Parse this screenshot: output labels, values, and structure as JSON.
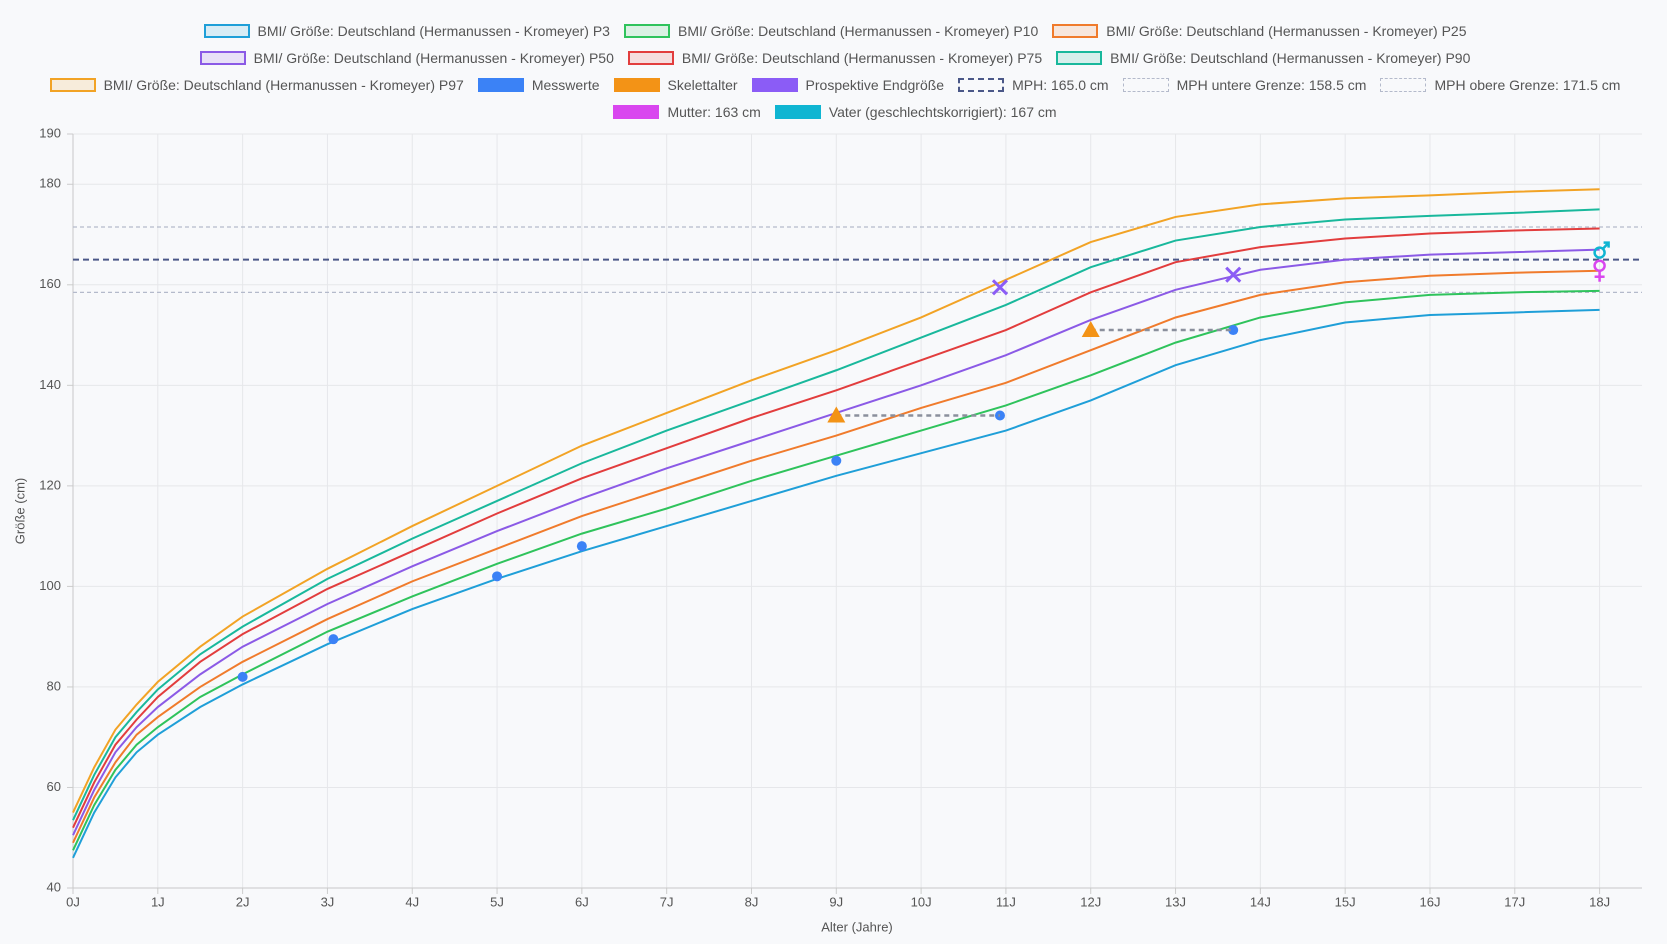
{
  "chart_data": {
    "type": "line",
    "x_label": "Alter (Jahre)",
    "y_label": "Größe (cm)",
    "xlim": [
      0,
      18.5
    ],
    "ylim": [
      40,
      190
    ],
    "xticks": [
      {
        "value": 0,
        "label": "0J"
      },
      {
        "value": 1,
        "label": "1J"
      },
      {
        "value": 2,
        "label": "2J"
      },
      {
        "value": 3,
        "label": "3J"
      },
      {
        "value": 4,
        "label": "4J"
      },
      {
        "value": 5,
        "label": "5J"
      },
      {
        "value": 6,
        "label": "6J"
      },
      {
        "value": 7,
        "label": "7J"
      },
      {
        "value": 8,
        "label": "8J"
      },
      {
        "value": 9,
        "label": "9J"
      },
      {
        "value": 10,
        "label": "10J"
      },
      {
        "value": 11,
        "label": "11J"
      },
      {
        "value": 12,
        "label": "12J"
      },
      {
        "value": 13,
        "label": "13J"
      },
      {
        "value": 14,
        "label": "14J"
      },
      {
        "value": 15,
        "label": "15J"
      },
      {
        "value": 16,
        "label": "16J"
      },
      {
        "value": 17,
        "label": "17J"
      },
      {
        "value": 18,
        "label": "18J"
      }
    ],
    "yticks": [
      40,
      60,
      80,
      100,
      120,
      140,
      160,
      180,
      190
    ],
    "grid": true,
    "x": [
      0,
      0.25,
      0.5,
      0.75,
      1,
      1.5,
      2,
      3,
      4,
      5,
      6,
      7,
      8,
      9,
      10,
      11,
      12,
      13,
      14,
      15,
      16,
      17,
      18
    ],
    "series": [
      {
        "name": "BMI/ Größe: Deutschland (Hermanussen - Kromeyer) P3",
        "color": "#1f9fd8",
        "style": "line",
        "values": [
          46,
          55,
          62,
          67,
          70.5,
          76,
          80.5,
          88.5,
          95.5,
          101.5,
          107,
          112,
          117,
          122,
          126.5,
          131,
          137,
          144,
          149,
          152.5,
          154,
          154.5,
          155
        ]
      },
      {
        "name": "BMI/ Größe: Deutschland (Hermanussen - Kromeyer) P10",
        "color": "#2fc35c",
        "style": "line",
        "values": [
          47.5,
          56.5,
          63.5,
          68.5,
          72,
          78,
          82.5,
          91,
          98,
          104.5,
          110.5,
          115.5,
          121,
          126,
          131,
          136,
          142,
          148.5,
          153.5,
          156.5,
          158,
          158.5,
          158.8
        ]
      },
      {
        "name": "BMI/ Größe: Deutschland (Hermanussen - Kromeyer) P25",
        "color": "#f07b2c",
        "style": "line",
        "values": [
          49,
          58,
          65,
          70.5,
          74,
          80,
          85,
          93.5,
          101,
          107.5,
          114,
          119.5,
          125,
          130,
          135.5,
          140.5,
          147,
          153.5,
          158,
          160.5,
          161.8,
          162.4,
          162.8
        ]
      },
      {
        "name": "BMI/ Größe: Deutschland (Hermanussen - Kromeyer) P50",
        "color": "#8b5ae6",
        "style": "line",
        "values": [
          50.5,
          59.5,
          67,
          72,
          76,
          82.5,
          88,
          96.5,
          104,
          111,
          117.5,
          123.5,
          129,
          134.5,
          140,
          146,
          153,
          159,
          163,
          165,
          166,
          166.5,
          167
        ]
      },
      {
        "name": "BMI/ Größe: Deutschland (Hermanussen - Kromeyer) P75",
        "color": "#e23d3d",
        "style": "line",
        "values": [
          52,
          61,
          68.5,
          73.5,
          78,
          85,
          90.5,
          99.5,
          107,
          114.5,
          121.5,
          127.5,
          133.5,
          139,
          145,
          151,
          158.5,
          164.5,
          167.5,
          169.2,
          170.2,
          170.8,
          171.2
        ]
      },
      {
        "name": "BMI/ Größe: Deutschland (Hermanussen - Kromeyer) P90",
        "color": "#19b89c",
        "style": "line",
        "values": [
          53.5,
          62.5,
          70,
          75,
          79.5,
          86.5,
          92,
          101.5,
          109.5,
          117,
          124.5,
          131,
          137,
          143,
          149.5,
          156,
          163.5,
          168.8,
          171.5,
          173,
          173.7,
          174.3,
          175
        ]
      },
      {
        "name": "BMI/ Größe: Deutschland (Hermanussen - Kromeyer) P97",
        "color": "#f2a325",
        "style": "line",
        "values": [
          55,
          64,
          71.5,
          76.5,
          81,
          88,
          94,
          103.5,
          112,
          120,
          128,
          134.5,
          141,
          147,
          153.5,
          161,
          168.5,
          173.5,
          176,
          177.2,
          177.8,
          178.5,
          179
        ]
      },
      {
        "name": "Messwerte",
        "color": "#3b82f6",
        "style": "circle",
        "x": [
          2,
          3.07,
          5,
          6,
          9,
          10.93,
          13.68
        ],
        "values": [
          82,
          89.5,
          102,
          108,
          125,
          134,
          151
        ]
      },
      {
        "name": "Skelettalter",
        "color": "#f39316",
        "style": "triangle",
        "x": [
          9,
          12
        ],
        "values": [
          134,
          151
        ]
      },
      {
        "name": "Prospektive Endgröße",
        "color": "#8b5cf6",
        "style": "cross",
        "x": [
          10.93,
          13.68
        ],
        "values": [
          159.5,
          162
        ]
      },
      {
        "name": "MPH: 165.0 cm",
        "color": "#4b5888",
        "style": "hline",
        "value": 165
      },
      {
        "name": "MPH untere Grenze: 158.5 cm",
        "color": "#b4bacb",
        "style": "hline",
        "value": 158.5
      },
      {
        "name": "MPH obere Grenze: 171.5 cm",
        "color": "#b4bacb",
        "style": "hline",
        "value": 171.5
      },
      {
        "name": "Mutter: 163 cm",
        "color": "#d946ef",
        "style": "female",
        "x": [
          18
        ],
        "values": [
          163
        ]
      },
      {
        "name": "Vater (geschlechtskorrigiert): 167 cm",
        "color": "#0fb5d2",
        "style": "male",
        "x": [
          18
        ],
        "values": [
          167
        ]
      }
    ]
  }
}
